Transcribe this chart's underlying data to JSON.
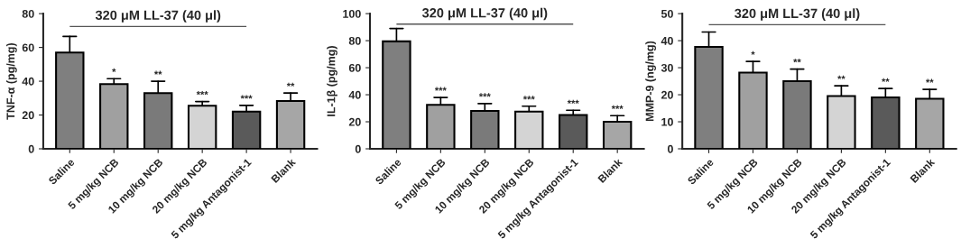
{
  "chart_data": [
    {
      "type": "bar",
      "ylabel": "TNF-α (pg/mg)",
      "categories": [
        "Saline",
        "5 mg/kg NCB",
        "10 mg/kg NCB",
        "20 mg/kg NCB",
        "5 mg/kg Antagonist-1",
        "Blank"
      ],
      "values": [
        57,
        38.3,
        33,
        25.5,
        22,
        28.3
      ],
      "errors": [
        [
          57,
          66.5
        ],
        [
          38.3,
          41.5
        ],
        [
          33,
          40
        ],
        [
          25.5,
          28
        ],
        [
          22,
          25.7
        ],
        [
          28.3,
          33
        ]
      ],
      "colors": [
        "#7f7f7f",
        "#a0a0a0",
        "#7a7a7a",
        "#d4d4d4",
        "#5a5a5a",
        "#a6a6a6"
      ],
      "ylim": [
        0,
        80
      ],
      "yticks": [
        0,
        20,
        40,
        60,
        80
      ],
      "grid": false,
      "ref_lines": [
        {
          "axis": "y",
          "value": 72.4,
          "label": "320 μM LL-37 (40 μl)",
          "color": "#555555"
        }
      ],
      "annotations": [
        {
          "text": "*",
          "x": "5 mg/kg NCB",
          "y": 41.5
        },
        {
          "text": "**",
          "x": "10 mg/kg NCB",
          "y": 40
        },
        {
          "text": "***",
          "x": "20 mg/kg NCB",
          "y": 28
        },
        {
          "text": "***",
          "x": "5 mg/kg Antagonist-1",
          "y": 25.7
        },
        {
          "text": "**",
          "x": "Blank",
          "y": 33
        }
      ]
    },
    {
      "type": "bar",
      "ylabel": "IL-1β (pg/mg)",
      "categories": [
        "Saline",
        "5 mg/kg NCB",
        "10 mg/kg NCB",
        "20 mg/kg NCB",
        "5 mg/kg Antagonist-1",
        "Blank"
      ],
      "values": [
        79.5,
        32.5,
        28,
        27.5,
        25,
        20
      ],
      "errors": [
        [
          79.5,
          89
        ],
        [
          32.5,
          38
        ],
        [
          28,
          33.5
        ],
        [
          27.5,
          31.5
        ],
        [
          25,
          28.5
        ],
        [
          20,
          24.5
        ]
      ],
      "colors": [
        "#7f7f7f",
        "#a0a0a0",
        "#7a7a7a",
        "#d4d4d4",
        "#5a5a5a",
        "#a6a6a6"
      ],
      "ylim": [
        0,
        100
      ],
      "yticks": [
        0,
        20,
        40,
        60,
        80,
        100
      ],
      "grid": false,
      "ref_lines": [
        {
          "axis": "y",
          "value": 92.2,
          "label": "320 μM LL-37 (40 μl)",
          "color": "#555555"
        }
      ],
      "annotations": [
        {
          "text": "***",
          "x": "5 mg/kg NCB",
          "y": 38
        },
        {
          "text": "***",
          "x": "10 mg/kg NCB",
          "y": 33.5
        },
        {
          "text": "***",
          "x": "20 mg/kg NCB",
          "y": 31.5
        },
        {
          "text": "***",
          "x": "5 mg/kg Antagonist-1",
          "y": 28.5
        },
        {
          "text": "***",
          "x": "Blank",
          "y": 24.5
        }
      ]
    },
    {
      "type": "bar",
      "ylabel": "MMP-9 (ng/mg)",
      "categories": [
        "Saline",
        "5 mg/kg NCB",
        "10 mg/kg NCB",
        "20 mg/kg NCB",
        "5 mg/kg Antagonist-1",
        "Blank"
      ],
      "values": [
        37.7,
        28.2,
        25,
        19.5,
        19,
        18.5
      ],
      "errors": [
        [
          37.7,
          43.2
        ],
        [
          28.2,
          32.3
        ],
        [
          25,
          29.5
        ],
        [
          19.5,
          23.3
        ],
        [
          19,
          22.3
        ],
        [
          18.5,
          22
        ]
      ],
      "colors": [
        "#7f7f7f",
        "#a0a0a0",
        "#7a7a7a",
        "#d4d4d4",
        "#5a5a5a",
        "#a6a6a6"
      ],
      "ylim": [
        0,
        50
      ],
      "yticks": [
        0,
        10,
        20,
        30,
        40,
        50
      ],
      "grid": false,
      "ref_lines": [
        {
          "axis": "y",
          "value": 45.9,
          "label": "320 μM LL-37 (40 μl)",
          "color": "#555555"
        }
      ],
      "annotations": [
        {
          "text": "*",
          "x": "5 mg/kg NCB",
          "y": 32.3
        },
        {
          "text": "**",
          "x": "10 mg/kg NCB",
          "y": 29.5
        },
        {
          "text": "**",
          "x": "20 mg/kg NCB",
          "y": 23.3
        },
        {
          "text": "**",
          "x": "5 mg/kg Antagonist-1",
          "y": 22.3
        },
        {
          "text": "**",
          "x": "Blank",
          "y": 22
        }
      ]
    }
  ]
}
